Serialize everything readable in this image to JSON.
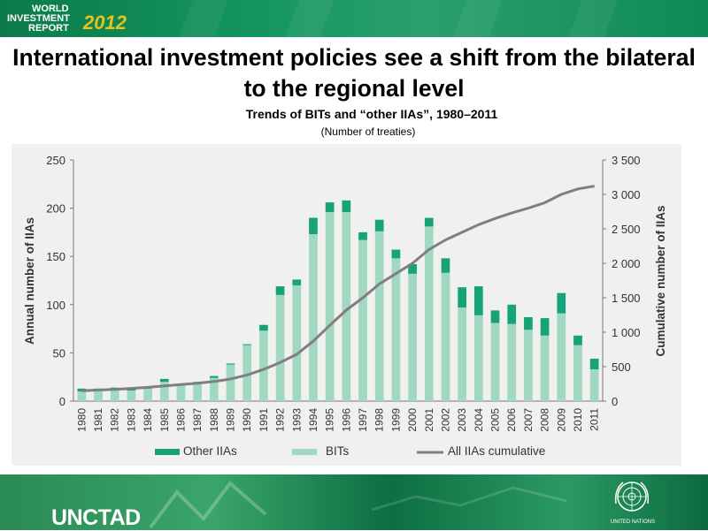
{
  "header": {
    "logo_line1": "WORLD",
    "logo_line2": "INVESTMENT",
    "logo_line3": "REPORT",
    "logo_year": "2012"
  },
  "slide_title": "International investment policies see a shift from the bilateral to the regional level",
  "footer": {
    "brand": "UNCTAD",
    "un_label": "UNITED NATIONS"
  },
  "colors": {
    "bits": "#a1d8c2",
    "other_iias": "#17a37a",
    "cumulative": "#7f7f7f",
    "panel": "#f0f0ef"
  },
  "chart_data": {
    "type": "bar",
    "title": "Trends of BITs and “other IIAs”, 1980–2011",
    "subtitle": "(Number of treaties)",
    "ylabel": "Annual number of IIAs",
    "y2label": "Cumulative number of IIAs",
    "ylim": [
      0,
      250
    ],
    "y2lim": [
      0,
      3500
    ],
    "yticks": [
      "0",
      "50",
      "100",
      "150",
      "200",
      "250"
    ],
    "y2ticks": [
      "0",
      "500",
      "1 000",
      "1 500",
      "2 000",
      "2 500",
      "3 000",
      "3 500"
    ],
    "categories": [
      "1980",
      "1981",
      "1982",
      "1983",
      "1984",
      "1985",
      "1986",
      "1987",
      "1988",
      "1989",
      "1990",
      "1991",
      "1992",
      "1993",
      "1994",
      "1995",
      "1996",
      "1997",
      "1998",
      "1999",
      "2000",
      "2001",
      "2002",
      "2003",
      "2004",
      "2005",
      "2006",
      "2007",
      "2008",
      "2009",
      "2010",
      "2011"
    ],
    "stacked": true,
    "series": [
      {
        "name": "BITs",
        "kind": "bar",
        "values": [
          10,
          11,
          12,
          11,
          13,
          20,
          16,
          19,
          24,
          38,
          58,
          73,
          110,
          120,
          173,
          196,
          196,
          167,
          176,
          148,
          132,
          181,
          133,
          97,
          89,
          81,
          80,
          74,
          68,
          91,
          58,
          33
        ]
      },
      {
        "name": "Other   IIAs",
        "kind": "bar",
        "values": [
          3,
          2,
          2,
          2,
          1,
          3,
          1,
          1,
          2,
          1,
          1,
          6,
          9,
          6,
          17,
          10,
          12,
          8,
          12,
          9,
          10,
          9,
          15,
          21,
          30,
          13,
          20,
          13,
          18,
          21,
          10,
          11
        ]
      },
      {
        "name": "All IIAs cumulative",
        "kind": "line",
        "axis": "right",
        "values": [
          150,
          160,
          170,
          185,
          200,
          220,
          240,
          260,
          285,
          320,
          380,
          460,
          560,
          680,
          870,
          1100,
          1320,
          1500,
          1700,
          1850,
          2000,
          2200,
          2340,
          2450,
          2560,
          2650,
          2730,
          2800,
          2880,
          3000,
          3080,
          3120
        ]
      }
    ],
    "legend_position": "bottom",
    "grid": false
  }
}
